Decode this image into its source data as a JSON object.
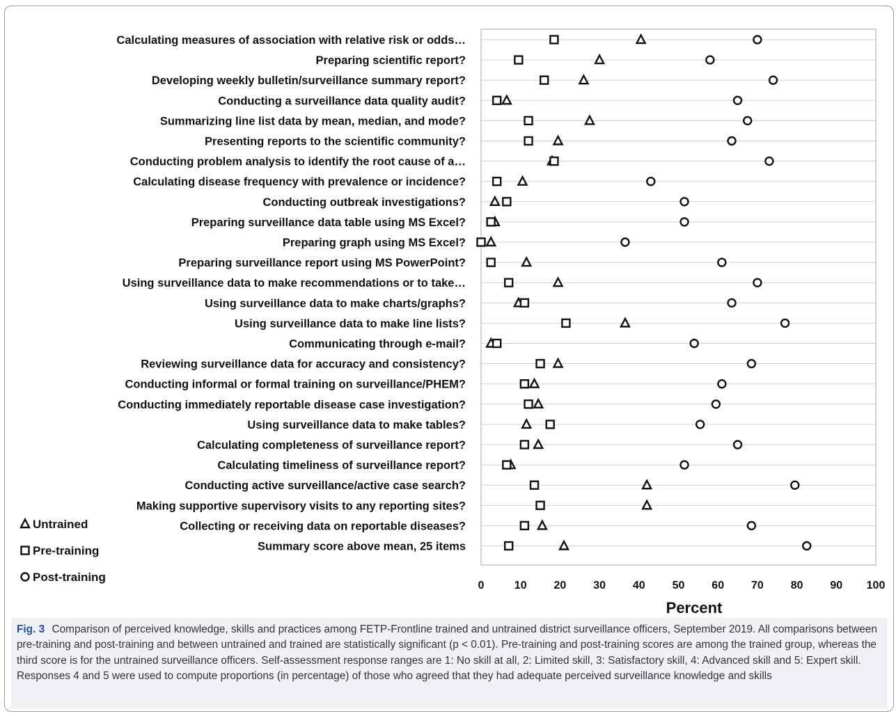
{
  "chart_data": {
    "type": "scatter",
    "xlabel": "Percent",
    "xlim": [
      0,
      100
    ],
    "xticks": [
      "0",
      "10",
      "20",
      "30",
      "40",
      "50",
      "60",
      "70",
      "80",
      "90",
      "100"
    ],
    "grid": true,
    "legend_position": "bottom-left",
    "categories": [
      "Calculating measures of association with relative risk or odds…",
      "Preparing scientific report?",
      "Developing weekly bulletin/surveillance summary report?",
      "Conducting a surveillance data quality audit?",
      "Summarizing line list data by mean, median, and mode?",
      "Presenting reports to the scientific community?",
      "Conducting problem analysis to identify the root cause of a…",
      "Calculating disease frequency with prevalence or incidence?",
      "Conducting outbreak investigations?",
      "Preparing surveillance data table using MS Excel?",
      "Preparing graph using MS Excel?",
      "Preparing surveillance report using MS PowerPoint?",
      "Using surveillance data to make recommendations or to take…",
      "Using surveillance data to make charts/graphs?",
      "Using surveillance data to make line lists?",
      "Communicating through e-mail?",
      "Reviewing surveillance data for accuracy and consistency?",
      "Conducting informal or formal training on surveillance/PHEM?",
      "Conducting immediately reportable disease case investigation?",
      "Using surveillance data to make tables?",
      "Calculating completeness of surveillance report?",
      "Calculating timeliness of surveillance report?",
      "Conducting active surveillance/active case search?",
      "Making supportive supervisory visits to any reporting sites?",
      "Collecting or receiving data on reportable diseases?",
      "Summary score above mean, 25 items"
    ],
    "series": [
      {
        "name": "Untrained",
        "marker": "triangle",
        "values": [
          40.5,
          30,
          26,
          6.5,
          27.5,
          19.5,
          18,
          10.5,
          3.5,
          3.5,
          2.5,
          11.5,
          19.5,
          9.5,
          36.5,
          2.5,
          19.5,
          13.5,
          14.5,
          11.5,
          14.5,
          7.5,
          42,
          42,
          15.5,
          21
        ]
      },
      {
        "name": "Pre-training",
        "marker": "square",
        "values": [
          18.5,
          9.5,
          16,
          4,
          12,
          12,
          18.5,
          4,
          6.5,
          2.5,
          0,
          2.5,
          7,
          11,
          21.5,
          4,
          15,
          11,
          12,
          17.5,
          11,
          6.5,
          13.5,
          15,
          11,
          7
        ]
      },
      {
        "name": "Post-training",
        "marker": "circle",
        "values": [
          70,
          58,
          74,
          65,
          67.5,
          63.5,
          73,
          43,
          51.5,
          51.5,
          36.5,
          61,
          70,
          63.5,
          77,
          54,
          68.5,
          61,
          59.5,
          55.5,
          65,
          51.5,
          79.5,
          null,
          68.5,
          82.5
        ]
      }
    ]
  },
  "caption": {
    "label": "Fig. 3",
    "text": "Comparison of perceived knowledge, skills and practices among FETP-Frontline trained and untrained district surveillance officers, September 2019. All comparisons between pre-training and post-training and between untrained and trained are statistically significant (p < 0.01). Pre-training and post-training scores are among the trained group, whereas the third score is for the untrained surveillance officers. Self-assessment response ranges are 1: No skill at all, 2: Limited skill, 3: Satisfactory skill, 4: Advanced skill and 5: Expert skill. Responses 4 and 5 were used to compute proportions (in percentage) of those who agreed that they had adequate perceived surveillance knowledge and skills"
  }
}
